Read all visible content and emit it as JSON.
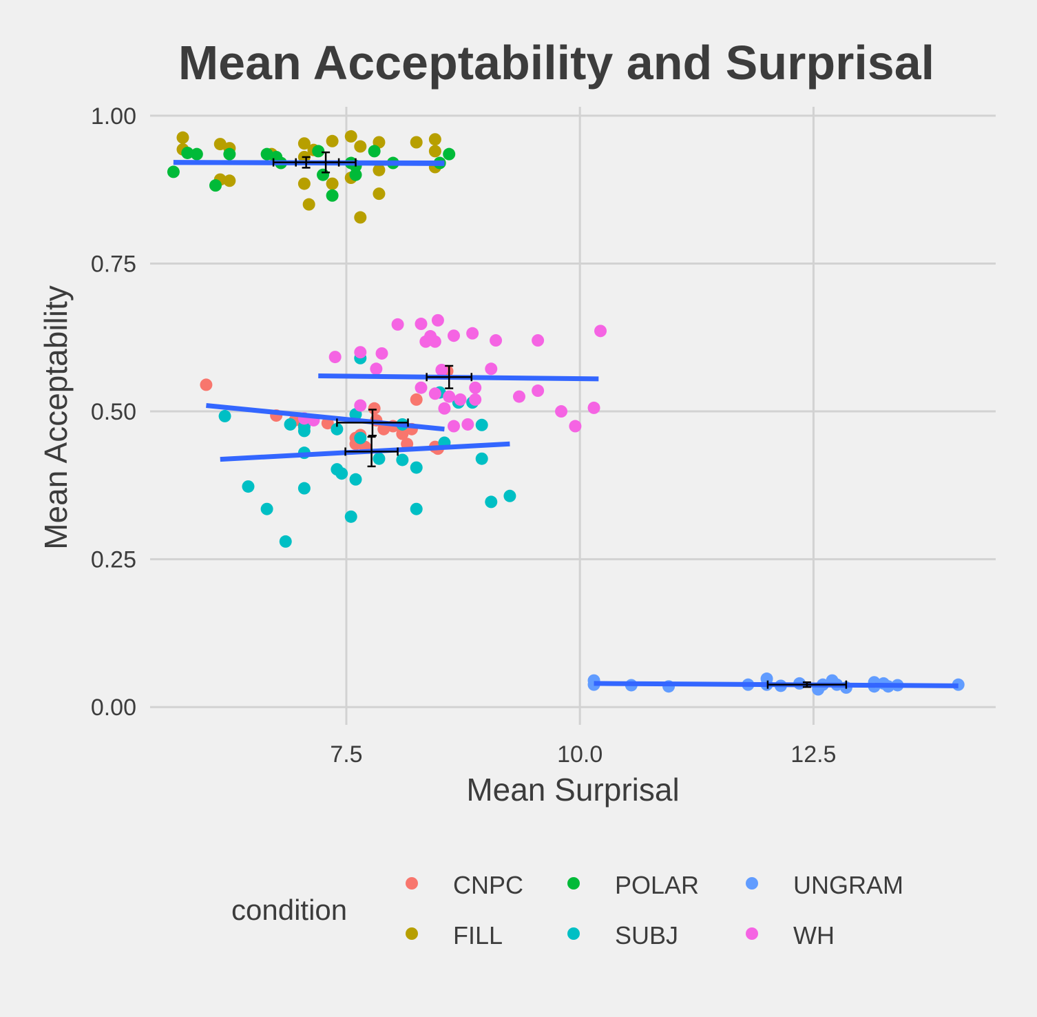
{
  "chart_data": {
    "type": "scatter",
    "title": "Mean Acceptability and Surprisal",
    "xlabel": "Mean Surprisal",
    "ylabel": "Mean Acceptability",
    "xlim": [
      5.4,
      14.45
    ],
    "ylim": [
      -0.03,
      1.015
    ],
    "x_ticks": [
      7.5,
      10.0,
      12.5
    ],
    "x_tick_labels": [
      "7.5",
      "10.0",
      "12.5"
    ],
    "y_ticks": [
      0.0,
      0.25,
      0.5,
      0.75,
      1.0
    ],
    "y_tick_labels": [
      "0.00",
      "0.25",
      "0.50",
      "0.75",
      "1.00"
    ],
    "grid": true,
    "legend": {
      "title": "condition",
      "position": "bottom",
      "entries": [
        {
          "name": "CNPC",
          "color": "#F8766D"
        },
        {
          "name": "FILL",
          "color": "#B79F00"
        },
        {
          "name": "POLAR",
          "color": "#00BA38"
        },
        {
          "name": "SUBJ",
          "color": "#00BFC4"
        },
        {
          "name": "UNGRAM",
          "color": "#619CFF"
        },
        {
          "name": "WH",
          "color": "#F564E3"
        }
      ]
    },
    "series": [
      {
        "name": "CNPC",
        "color": "#F8766D",
        "points": [
          [
            6.0,
            0.545
          ],
          [
            6.75,
            0.493
          ],
          [
            6.95,
            0.485
          ],
          [
            7.05,
            0.473
          ],
          [
            7.3,
            0.48
          ],
          [
            7.6,
            0.455
          ],
          [
            7.6,
            0.445
          ],
          [
            7.65,
            0.46
          ],
          [
            7.7,
            0.44
          ],
          [
            7.8,
            0.505
          ],
          [
            7.82,
            0.485
          ],
          [
            7.9,
            0.47
          ],
          [
            8.0,
            0.475
          ],
          [
            8.1,
            0.462
          ],
          [
            8.15,
            0.445
          ],
          [
            8.2,
            0.47
          ],
          [
            8.25,
            0.52
          ],
          [
            8.45,
            0.44
          ],
          [
            8.48,
            0.437
          ],
          [
            8.58,
            0.568
          ]
        ],
        "fit": {
          "x": [
            6.0,
            8.55
          ],
          "y": [
            0.51,
            0.47
          ]
        },
        "mean": {
          "x": 7.78,
          "y": 0.481,
          "x_err": 0.38,
          "y_err": 0.022
        }
      },
      {
        "name": "FILL",
        "color": "#B79F00",
        "points": [
          [
            5.75,
            0.963
          ],
          [
            5.75,
            0.943
          ],
          [
            6.15,
            0.952
          ],
          [
            6.15,
            0.892
          ],
          [
            6.25,
            0.945
          ],
          [
            6.25,
            0.89
          ],
          [
            6.7,
            0.935
          ],
          [
            7.05,
            0.953
          ],
          [
            7.05,
            0.93
          ],
          [
            7.05,
            0.885
          ],
          [
            7.1,
            0.85
          ],
          [
            7.15,
            0.942
          ],
          [
            7.35,
            0.957
          ],
          [
            7.35,
            0.885
          ],
          [
            7.55,
            0.965
          ],
          [
            7.55,
            0.895
          ],
          [
            7.65,
            0.948
          ],
          [
            7.65,
            0.828
          ],
          [
            7.85,
            0.955
          ],
          [
            7.85,
            0.908
          ],
          [
            7.85,
            0.868
          ],
          [
            8.25,
            0.955
          ],
          [
            8.45,
            0.96
          ],
          [
            8.45,
            0.94
          ],
          [
            8.45,
            0.913
          ]
        ],
        "fit": {
          "x": [
            5.65,
            8.55
          ],
          "y": [
            0.921,
            0.92
          ]
        },
        "mean": {
          "x": 7.28,
          "y": 0.921,
          "x_err": 0.32,
          "y_err": 0.017
        }
      },
      {
        "name": "POLAR",
        "color": "#00BA38",
        "points": [
          [
            5.65,
            0.905
          ],
          [
            5.8,
            0.937
          ],
          [
            5.9,
            0.935
          ],
          [
            6.1,
            0.882
          ],
          [
            6.25,
            0.935
          ],
          [
            6.65,
            0.935
          ],
          [
            6.75,
            0.93
          ],
          [
            6.8,
            0.92
          ],
          [
            7.2,
            0.94
          ],
          [
            7.25,
            0.9
          ],
          [
            7.35,
            0.865
          ],
          [
            7.55,
            0.92
          ],
          [
            7.6,
            0.915
          ],
          [
            7.6,
            0.9
          ],
          [
            7.8,
            0.94
          ],
          [
            8.0,
            0.92
          ],
          [
            8.5,
            0.92
          ],
          [
            8.6,
            0.935
          ]
        ],
        "fit": {
          "x": [
            5.65,
            8.55
          ],
          "y": [
            0.921,
            0.919
          ]
        },
        "mean": {
          "x": 7.07,
          "y": 0.921,
          "x_err": 0.35,
          "y_err": 0.009
        }
      },
      {
        "name": "SUBJ",
        "color": "#00BFC4",
        "points": [
          [
            6.2,
            0.492
          ],
          [
            6.45,
            0.373
          ],
          [
            6.65,
            0.335
          ],
          [
            6.85,
            0.28
          ],
          [
            6.9,
            0.478
          ],
          [
            7.05,
            0.475
          ],
          [
            7.05,
            0.467
          ],
          [
            7.05,
            0.43
          ],
          [
            7.05,
            0.37
          ],
          [
            7.4,
            0.47
          ],
          [
            7.4,
            0.402
          ],
          [
            7.45,
            0.395
          ],
          [
            7.55,
            0.322
          ],
          [
            7.6,
            0.495
          ],
          [
            7.6,
            0.385
          ],
          [
            7.65,
            0.59
          ],
          [
            7.65,
            0.455
          ],
          [
            7.85,
            0.42
          ],
          [
            8.1,
            0.478
          ],
          [
            8.1,
            0.418
          ],
          [
            8.25,
            0.405
          ],
          [
            8.25,
            0.335
          ],
          [
            8.5,
            0.532
          ],
          [
            8.55,
            0.447
          ],
          [
            8.7,
            0.515
          ],
          [
            8.85,
            0.515
          ],
          [
            8.95,
            0.477
          ],
          [
            8.95,
            0.42
          ],
          [
            9.05,
            0.347
          ],
          [
            9.25,
            0.357
          ]
        ],
        "fit": {
          "x": [
            6.15,
            9.25
          ],
          "y": [
            0.419,
            0.445
          ]
        },
        "mean": {
          "x": 7.77,
          "y": 0.432,
          "x_err": 0.28,
          "y_err": 0.025
        }
      },
      {
        "name": "UNGRAM",
        "color": "#619CFF",
        "points": [
          [
            10.15,
            0.045
          ],
          [
            10.15,
            0.038
          ],
          [
            10.55,
            0.037
          ],
          [
            10.95,
            0.035
          ],
          [
            11.8,
            0.038
          ],
          [
            12.0,
            0.048
          ],
          [
            12.0,
            0.038
          ],
          [
            12.15,
            0.036
          ],
          [
            12.35,
            0.04
          ],
          [
            12.55,
            0.03
          ],
          [
            12.6,
            0.038
          ],
          [
            12.7,
            0.045
          ],
          [
            12.75,
            0.038
          ],
          [
            12.85,
            0.033
          ],
          [
            13.15,
            0.042
          ],
          [
            13.15,
            0.035
          ],
          [
            13.25,
            0.04
          ],
          [
            13.3,
            0.035
          ],
          [
            13.4,
            0.037
          ],
          [
            14.05,
            0.038
          ]
        ],
        "fit": {
          "x": [
            10.15,
            14.05
          ],
          "y": [
            0.04,
            0.036
          ]
        },
        "mean": {
          "x": 12.43,
          "y": 0.038,
          "x_err": 0.42,
          "y_err": 0.004
        }
      },
      {
        "name": "WH",
        "color": "#F564E3",
        "points": [
          [
            7.05,
            0.488
          ],
          [
            7.15,
            0.485
          ],
          [
            7.38,
            0.592
          ],
          [
            7.65,
            0.6
          ],
          [
            7.65,
            0.51
          ],
          [
            7.82,
            0.572
          ],
          [
            7.88,
            0.598
          ],
          [
            8.05,
            0.647
          ],
          [
            8.3,
            0.648
          ],
          [
            8.3,
            0.54
          ],
          [
            8.35,
            0.618
          ],
          [
            8.4,
            0.627
          ],
          [
            8.45,
            0.618
          ],
          [
            8.45,
            0.53
          ],
          [
            8.48,
            0.654
          ],
          [
            8.52,
            0.57
          ],
          [
            8.55,
            0.505
          ],
          [
            8.6,
            0.525
          ],
          [
            8.65,
            0.628
          ],
          [
            8.65,
            0.475
          ],
          [
            8.72,
            0.52
          ],
          [
            8.8,
            0.478
          ],
          [
            8.85,
            0.632
          ],
          [
            8.88,
            0.54
          ],
          [
            8.88,
            0.52
          ],
          [
            9.05,
            0.572
          ],
          [
            9.1,
            0.62
          ],
          [
            9.35,
            0.525
          ],
          [
            9.55,
            0.62
          ],
          [
            9.55,
            0.535
          ],
          [
            9.8,
            0.5
          ],
          [
            9.95,
            0.475
          ],
          [
            10.15,
            0.506
          ],
          [
            10.22,
            0.636
          ]
        ],
        "fit": {
          "x": [
            7.2,
            10.2
          ],
          "y": [
            0.56,
            0.555
          ]
        },
        "mean": {
          "x": 8.6,
          "y": 0.558,
          "x_err": 0.24,
          "y_err": 0.019
        }
      }
    ]
  }
}
